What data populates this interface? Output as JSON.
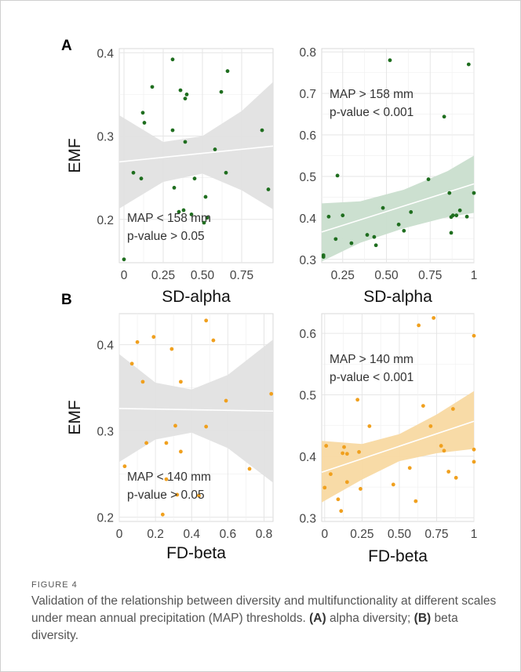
{
  "caption": {
    "label": "FIGURE 4",
    "text": "Validation of the relationship between diversity and multifunctionality at different scales under mean annual precipitation (MAP) thresholds.",
    "a_marker": "(A)",
    "a_text": "alpha diversity;",
    "b_marker": "(B)",
    "b_text": "beta diversity."
  },
  "panel_labels": [
    "A",
    "B"
  ],
  "chart_data": [
    {
      "type": "scatter",
      "panel": "A",
      "xlabel": "SD-alpha",
      "ylabel": "EMF",
      "xlim": [
        -0.03,
        0.95
      ],
      "ylim": [
        0.148,
        0.405
      ],
      "xticks": [
        0,
        0.25,
        0.5,
        0.75
      ],
      "xtick_labels": [
        "0",
        "0.25",
        "0.50",
        "0.75"
      ],
      "yticks": [
        0.2,
        0.3,
        0.4
      ],
      "ytick_labels": [
        "0.2",
        "0.3",
        "0.4"
      ],
      "grid": true,
      "point_color": "#1f6e1f",
      "band_color": "#e2e2e2",
      "line_color": "#ffffff",
      "annotation": [
        "MAP < 158 mm",
        "p-value > 0.05"
      ],
      "annotation_position": "bottom-left",
      "fit": {
        "x": [
          -0.03,
          0.95
        ],
        "y": [
          0.269,
          0.288
        ]
      },
      "ci_lower": [
        [
          -0.03,
          0.213
        ],
        [
          0.25,
          0.245
        ],
        [
          0.5,
          0.255
        ],
        [
          0.75,
          0.235
        ],
        [
          0.95,
          0.212
        ]
      ],
      "ci_upper": [
        [
          -0.03,
          0.325
        ],
        [
          0.25,
          0.293
        ],
        [
          0.5,
          0.3
        ],
        [
          0.75,
          0.33
        ],
        [
          0.95,
          0.365
        ]
      ],
      "x": [
        0,
        0.06,
        0.11,
        0.12,
        0.13,
        0.18,
        0.31,
        0.31,
        0.32,
        0.35,
        0.36,
        0.38,
        0.39,
        0.39,
        0.4,
        0.43,
        0.45,
        0.51,
        0.52,
        0.53,
        0.58,
        0.62,
        0.65,
        0.66,
        0.88,
        0.92
      ],
      "y": [
        0.152,
        0.256,
        0.249,
        0.328,
        0.316,
        0.359,
        0.392,
        0.307,
        0.238,
        0.209,
        0.355,
        0.211,
        0.345,
        0.293,
        0.35,
        0.206,
        0.249,
        0.196,
        0.227,
        0.202,
        0.284,
        0.353,
        0.256,
        0.378,
        0.307,
        0.236
      ]
    },
    {
      "type": "scatter",
      "panel": "A",
      "xlabel": "SD-alpha",
      "ylabel": "",
      "xlim": [
        0.13,
        1.0
      ],
      "ylim": [
        0.292,
        0.808
      ],
      "xticks": [
        0.25,
        0.5,
        0.75,
        1.0
      ],
      "xtick_labels": [
        "0.25",
        "0.50",
        "0.75",
        "1"
      ],
      "yticks": [
        0.3,
        0.4,
        0.5,
        0.6,
        0.7,
        0.8
      ],
      "ytick_labels": [
        "0.3",
        "0.4",
        "0.5",
        "0.6",
        "0.7",
        "0.8"
      ],
      "grid": true,
      "point_color": "#1f6e1f",
      "band_color": "#c9dece",
      "line_color": "#ffffff",
      "annotation": [
        "MAP > 158 mm",
        "p-value < 0.001"
      ],
      "annotation_position": "top-left",
      "fit": {
        "x": [
          0.13,
          1.0
        ],
        "y": [
          0.366,
          0.482
        ]
      },
      "ci_lower": [
        [
          0.13,
          0.295
        ],
        [
          0.35,
          0.34
        ],
        [
          0.6,
          0.375
        ],
        [
          0.85,
          0.402
        ],
        [
          1.0,
          0.412
        ]
      ],
      "ci_upper": [
        [
          0.13,
          0.435
        ],
        [
          0.35,
          0.44
        ],
        [
          0.6,
          0.468
        ],
        [
          0.85,
          0.513
        ],
        [
          1.0,
          0.55
        ]
      ],
      "x": [
        0.14,
        0.14,
        0.17,
        0.21,
        0.22,
        0.25,
        0.3,
        0.39,
        0.43,
        0.44,
        0.48,
        0.52,
        0.57,
        0.6,
        0.64,
        0.74,
        0.83,
        0.86,
        0.87,
        0.87,
        0.88,
        0.9,
        0.92,
        0.96,
        0.97,
        1.0
      ],
      "y": [
        0.31,
        0.306,
        0.403,
        0.349,
        0.502,
        0.406,
        0.339,
        0.359,
        0.354,
        0.334,
        0.424,
        0.78,
        0.384,
        0.369,
        0.414,
        0.493,
        0.644,
        0.46,
        0.364,
        0.402,
        0.406,
        0.406,
        0.418,
        0.403,
        0.77,
        0.46
      ]
    },
    {
      "type": "scatter",
      "panel": "B",
      "xlabel": "FD-beta",
      "ylabel": "EMF",
      "xlim": [
        0.0,
        0.85
      ],
      "ylim": [
        0.195,
        0.436
      ],
      "xticks": [
        0,
        0.2,
        0.4,
        0.6,
        0.8
      ],
      "xtick_labels": [
        "0",
        "0.2",
        "0.4",
        "0.6",
        "0.8"
      ],
      "yticks": [
        0.2,
        0.3,
        0.4
      ],
      "ytick_labels": [
        "0.2",
        "0.3",
        "0.4"
      ],
      "grid": true,
      "point_color": "#f0a01e",
      "band_color": "#e2e2e2",
      "line_color": "#ffffff",
      "annotation": [
        "MAP < 140 mm",
        "p-value > 0.05"
      ],
      "annotation_position": "bottom-left",
      "fit": {
        "x": [
          0.0,
          0.85
        ],
        "y": [
          0.326,
          0.323
        ]
      },
      "ci_lower": [
        [
          0.0,
          0.264
        ],
        [
          0.2,
          0.29
        ],
        [
          0.4,
          0.298
        ],
        [
          0.6,
          0.28
        ],
        [
          0.85,
          0.24
        ]
      ],
      "ci_upper": [
        [
          0.0,
          0.389
        ],
        [
          0.2,
          0.356
        ],
        [
          0.4,
          0.348
        ],
        [
          0.6,
          0.365
        ],
        [
          0.85,
          0.406
        ]
      ],
      "x": [
        0.03,
        0.07,
        0.1,
        0.13,
        0.15,
        0.19,
        0.24,
        0.26,
        0.26,
        0.29,
        0.31,
        0.32,
        0.34,
        0.34,
        0.44,
        0.48,
        0.48,
        0.52,
        0.59,
        0.72,
        0.84
      ],
      "y": [
        0.259,
        0.378,
        0.403,
        0.357,
        0.286,
        0.409,
        0.203,
        0.286,
        0.244,
        0.395,
        0.306,
        0.226,
        0.276,
        0.357,
        0.225,
        0.305,
        0.428,
        0.405,
        0.335,
        0.256,
        0.343
      ]
    },
    {
      "type": "scatter",
      "panel": "B",
      "xlabel": "FD-beta",
      "ylabel": "",
      "xlim": [
        -0.02,
        1.0
      ],
      "ylim": [
        0.294,
        0.632
      ],
      "xticks": [
        0,
        0.25,
        0.5,
        0.75,
        1.0
      ],
      "xtick_labels": [
        "0",
        "0.25",
        "0.50",
        "0.75",
        "1"
      ],
      "yticks": [
        0.3,
        0.4,
        0.5,
        0.6
      ],
      "ytick_labels": [
        "0.3",
        "0.4",
        "0.5",
        "0.6"
      ],
      "grid": true,
      "point_color": "#f0a01e",
      "band_color": "#f8d9a2",
      "line_color": "#ffffff",
      "annotation": [
        "MAP > 140 mm",
        "p-value < 0.001"
      ],
      "annotation_position": "top-left",
      "fit": {
        "x": [
          -0.02,
          1.0
        ],
        "y": [
          0.374,
          0.457
        ]
      },
      "ci_lower": [
        [
          -0.02,
          0.325
        ],
        [
          0.25,
          0.362
        ],
        [
          0.5,
          0.392
        ],
        [
          0.75,
          0.405
        ],
        [
          1.0,
          0.412
        ]
      ],
      "ci_upper": [
        [
          -0.02,
          0.425
        ],
        [
          0.25,
          0.42
        ],
        [
          0.5,
          0.436
        ],
        [
          0.75,
          0.468
        ],
        [
          1.0,
          0.506
        ]
      ],
      "x": [
        0.0,
        0.01,
        0.04,
        0.09,
        0.11,
        0.12,
        0.13,
        0.15,
        0.15,
        0.22,
        0.23,
        0.24,
        0.3,
        0.46,
        0.57,
        0.61,
        0.63,
        0.66,
        0.71,
        0.73,
        0.78,
        0.8,
        0.83,
        0.86,
        0.88,
        1.0,
        1.0,
        1.0
      ],
      "y": [
        0.349,
        0.417,
        0.371,
        0.33,
        0.311,
        0.405,
        0.415,
        0.358,
        0.404,
        0.492,
        0.407,
        0.347,
        0.449,
        0.354,
        0.381,
        0.327,
        0.613,
        0.482,
        0.449,
        0.625,
        0.417,
        0.409,
        0.375,
        0.477,
        0.365,
        0.596,
        0.411,
        0.391
      ]
    }
  ]
}
